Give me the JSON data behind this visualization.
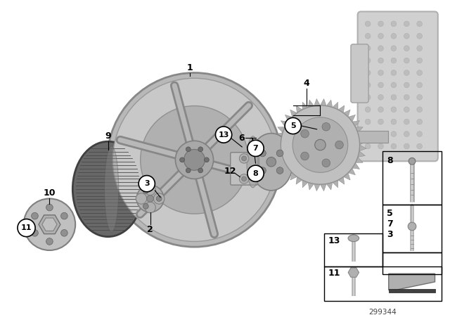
{
  "bg_color": "#ffffff",
  "part_number": "299344",
  "gray_light": "#c0c0c0",
  "gray_mid": "#a0a0a0",
  "gray_dark": "#606060",
  "gray_darker": "#404040",
  "gray_pulley": "#686868",
  "gray_engine": "#c8c8c8"
}
